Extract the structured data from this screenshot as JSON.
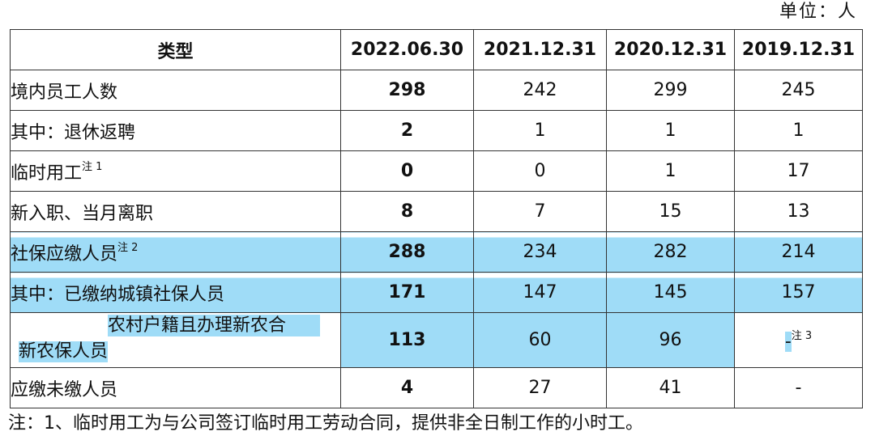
{
  "unit_label": "单位：人",
  "headers": [
    "类型",
    "2022.06.30",
    "2021.12.31",
    "2020.12.31",
    "2019.12.31"
  ],
  "rows": [
    {
      "label": "境内员工人数",
      "note": "",
      "values": [
        "298",
        "242",
        "299",
        "245"
      ]
    },
    {
      "label": "其中：退休返聘",
      "note": "",
      "values": [
        "2",
        "1",
        "1",
        "1"
      ]
    },
    {
      "label": "临时用工",
      "note": "注 1",
      "values": [
        "0",
        "0",
        "1",
        "17"
      ]
    },
    {
      "label": "新入职、当月离职",
      "note": "",
      "values": [
        "8",
        "7",
        "15",
        "13"
      ]
    },
    {
      "label": "社保应缴人员",
      "note": "注 2",
      "values": [
        "288",
        "234",
        "282",
        "214"
      ]
    },
    {
      "label": "其中：已缴纳城镇社保人员",
      "note": "",
      "values": [
        "171",
        "147",
        "145",
        "157"
      ]
    },
    {
      "label_a": "新农保人员",
      "label_b": "农村户籍且办理新农合",
      "note": "",
      "values": [
        "113",
        "60",
        "96",
        "-"
      ],
      "value_note": "注 3"
    },
    {
      "label": "应缴未缴人员",
      "note": "",
      "values": [
        "4",
        "27",
        "41",
        "-"
      ]
    }
  ],
  "footnote": "注：1、临时用工为与公司签订临时用工劳动合同，提供非全日制工作的小时工。"
}
